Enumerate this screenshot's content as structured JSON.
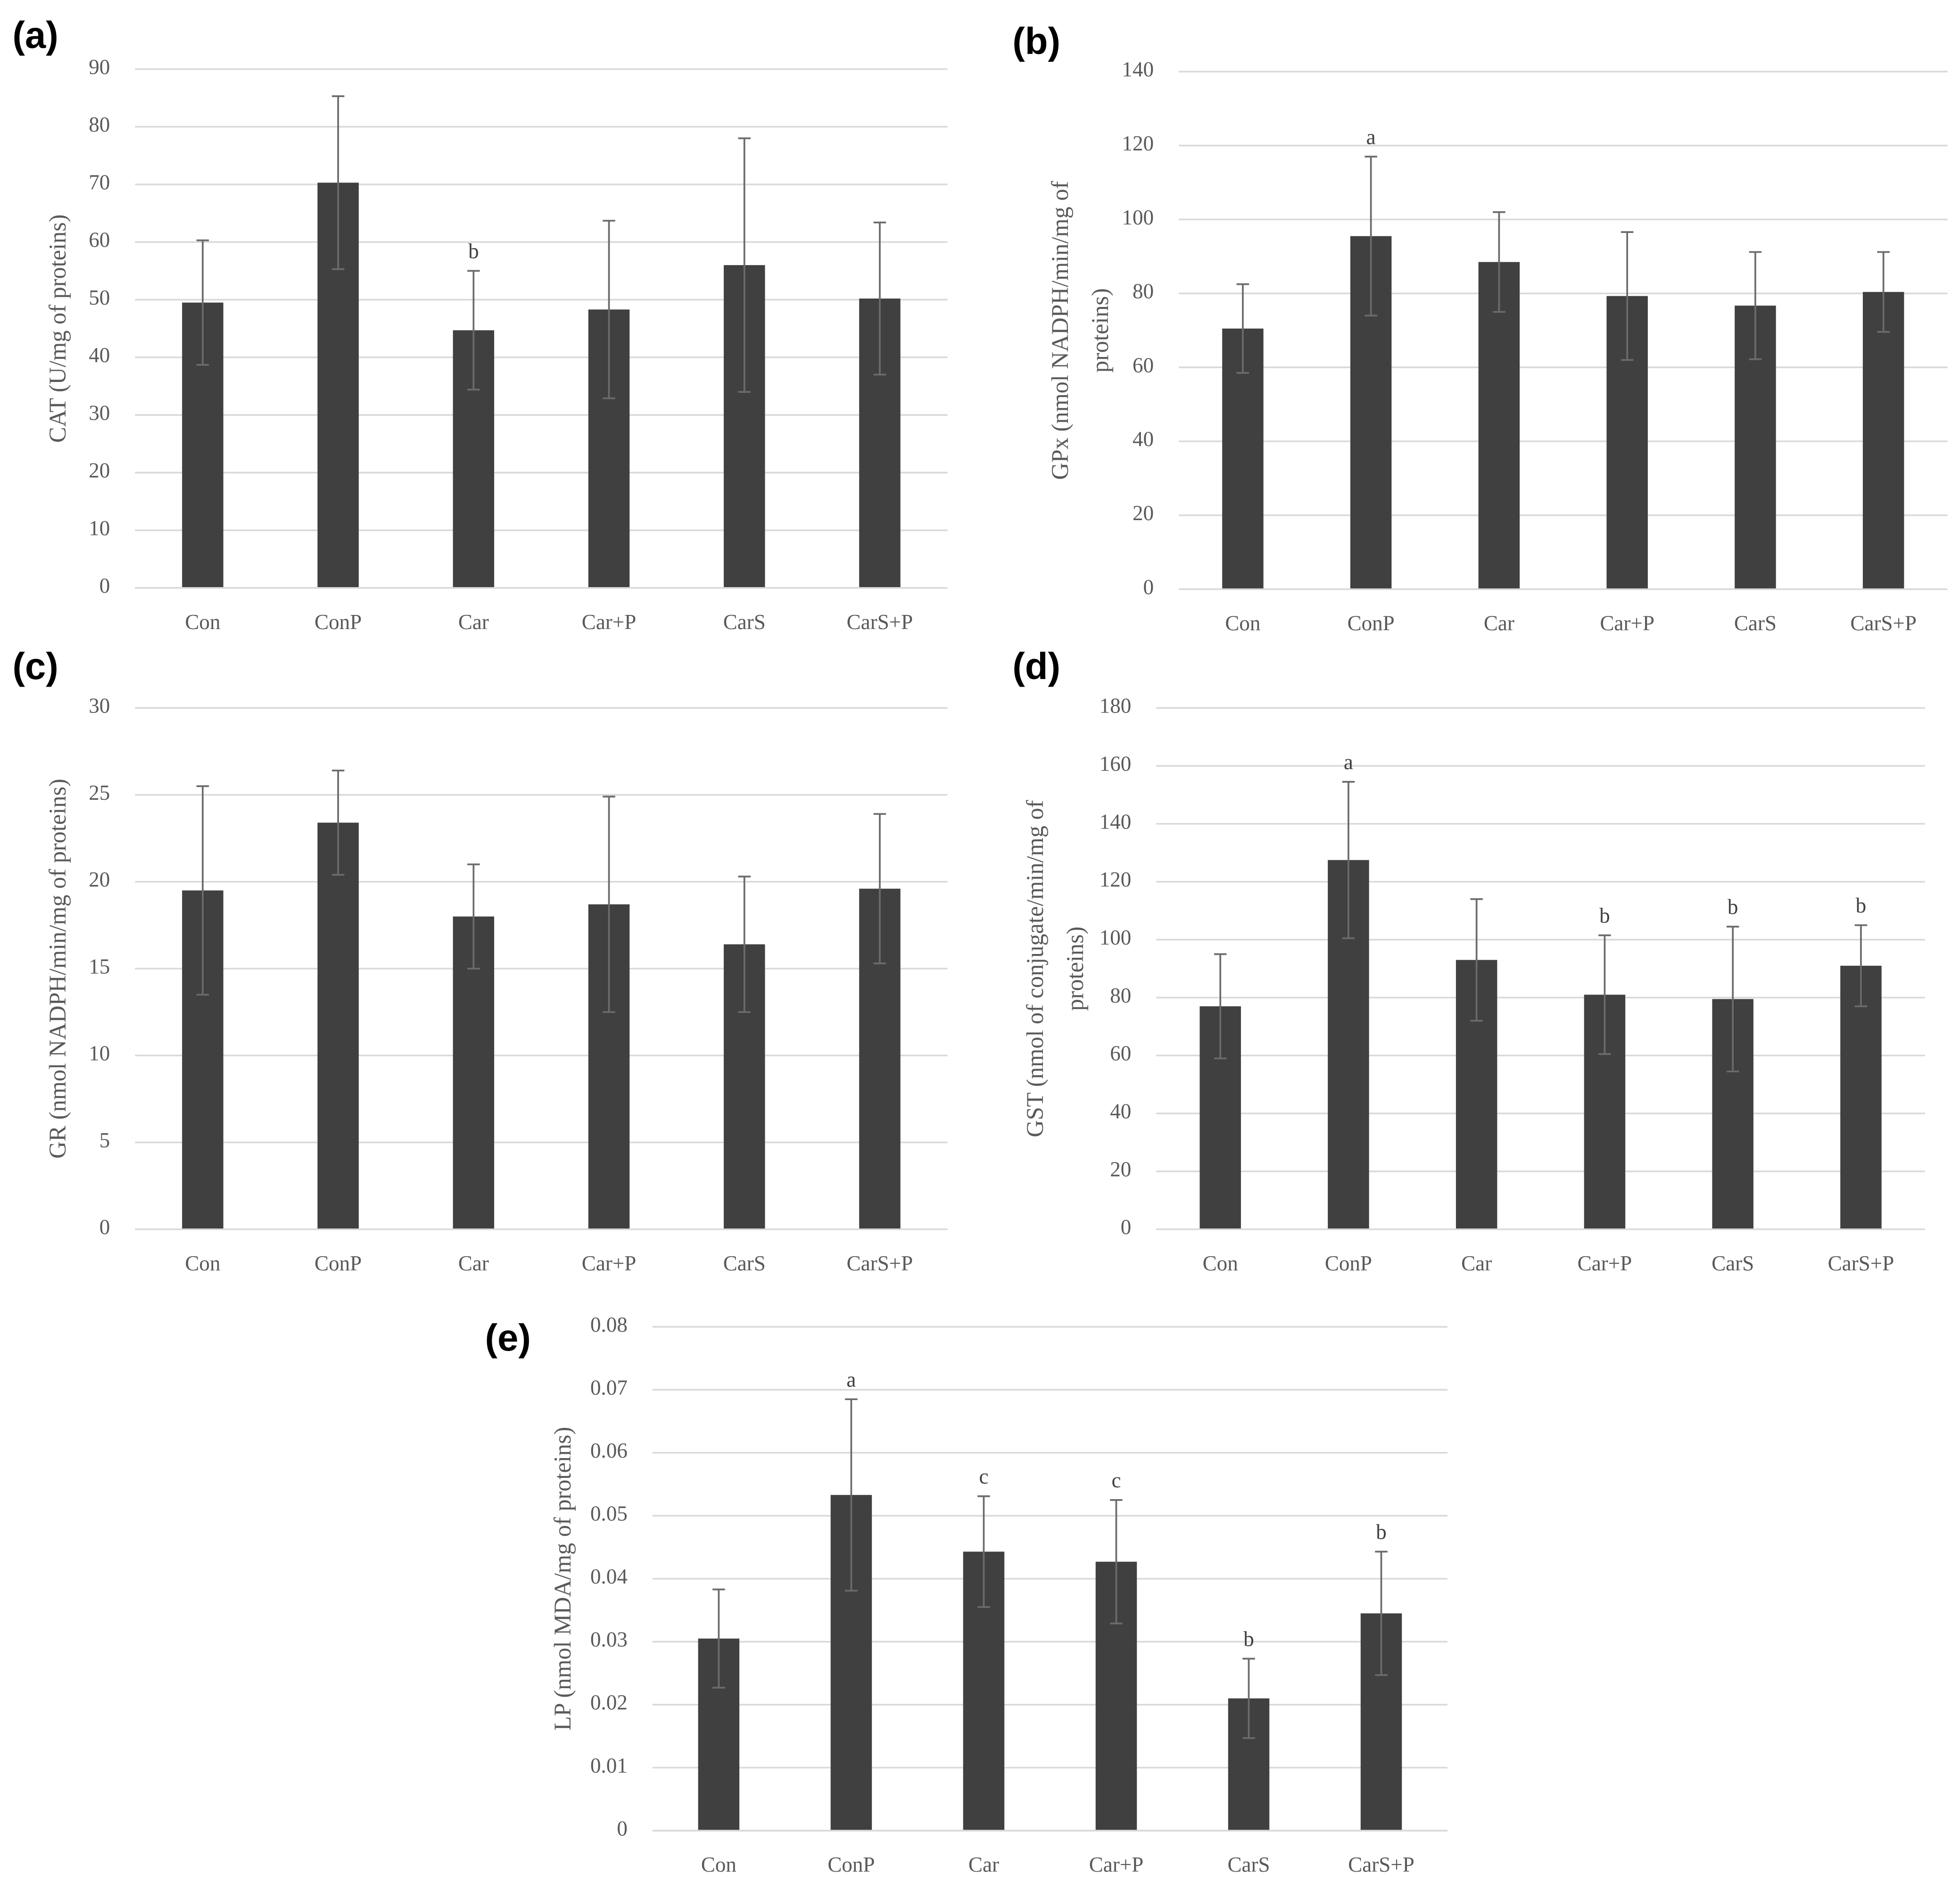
{
  "chart_data": [
    {
      "type": "bar",
      "panel": "(a)",
      "y_label": [
        "CAT (U/mg of proteins)"
      ],
      "categories": [
        "Con",
        "ConP",
        "Car",
        "Car+P",
        "CarS",
        "CarS+P"
      ],
      "values": [
        49.5,
        70.3,
        44.7,
        48.3,
        56,
        50.2
      ],
      "errors": [
        10.8,
        15,
        10.3,
        15.4,
        22,
        13.2
      ],
      "annotations": [
        null,
        null,
        "b",
        null,
        null,
        null
      ],
      "color": "#404040",
      "ylim": [
        0,
        90
      ],
      "yticks": [
        0,
        10,
        20,
        30,
        40,
        50,
        60,
        70,
        80,
        90
      ],
      "grid": true
    },
    {
      "type": "bar",
      "panel": "(b)",
      "y_label": [
        "GPx (nmol NADPH/min/mg of",
        "proteins)"
      ],
      "categories": [
        "Con",
        "ConP",
        "Car",
        "Car+P",
        "CarS",
        "CarS+P"
      ],
      "values": [
        70.5,
        95.5,
        88.5,
        79.3,
        76.7,
        80.4
      ],
      "errors": [
        12,
        21.5,
        13.5,
        17.3,
        14.5,
        10.8
      ],
      "annotations": [
        null,
        "a",
        null,
        null,
        null,
        null
      ],
      "color": "#404040",
      "ylim": [
        0,
        140
      ],
      "yticks": [
        0,
        20,
        40,
        60,
        80,
        100,
        120,
        140
      ],
      "grid": true
    },
    {
      "type": "bar",
      "panel": "(c)",
      "y_label": [
        "GR (nmol NADPH/min/mg of proteins)"
      ],
      "categories": [
        "Con",
        "ConP",
        "Car",
        "Car+P",
        "CarS",
        "CarS+P"
      ],
      "values": [
        19.5,
        23.4,
        18,
        18.7,
        16.4,
        19.6
      ],
      "errors": [
        6,
        3,
        3,
        6.2,
        3.9,
        4.3
      ],
      "annotations": [
        null,
        null,
        null,
        null,
        null,
        null
      ],
      "color": "#404040",
      "ylim": [
        0,
        30
      ],
      "yticks": [
        0,
        5,
        10,
        15,
        20,
        25,
        30
      ],
      "grid": true
    },
    {
      "type": "bar",
      "panel": "(d)",
      "y_label": [
        "GST (nmol of conjugate/min/mg of",
        "proteins)"
      ],
      "categories": [
        "Con",
        "ConP",
        "Car",
        "Car+P",
        "CarS",
        "CarS+P"
      ],
      "values": [
        77,
        127.5,
        93,
        81,
        79.5,
        91
      ],
      "errors": [
        18,
        27,
        21,
        20.5,
        25,
        14
      ],
      "annotations": [
        null,
        "a",
        null,
        "b",
        "b",
        "b"
      ],
      "color": "#404040",
      "ylim": [
        0,
        180
      ],
      "yticks": [
        0,
        20,
        40,
        60,
        80,
        100,
        120,
        140,
        160,
        180
      ],
      "grid": true
    },
    {
      "type": "bar",
      "panel": "(e)",
      "y_label": [
        "LP (nmol MDA/mg of proteins)"
      ],
      "categories": [
        "Con",
        "ConP",
        "Car",
        "Car+P",
        "CarS",
        "CarS+P"
      ],
      "values": [
        0.0305,
        0.0533,
        0.0443,
        0.0427,
        0.021,
        0.0345
      ],
      "errors": [
        0.0078,
        0.0152,
        0.0088,
        0.0098,
        0.0063,
        0.0098
      ],
      "annotations": [
        null,
        "a",
        "c",
        "c",
        "b",
        "b"
      ],
      "color": "#404040",
      "ylim": [
        0,
        0.08
      ],
      "yticks": [
        0,
        0.01,
        0.02,
        0.03,
        0.04,
        0.05,
        0.06,
        0.07,
        0.08
      ],
      "grid": true
    }
  ]
}
